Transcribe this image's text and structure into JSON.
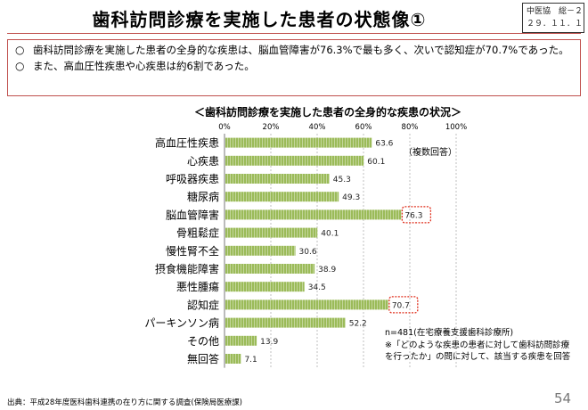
{
  "page": {
    "title": "歯科訪問診療を実施した患者の状態像①",
    "doc_ref_line1": "中医協　総－２",
    "doc_ref_line2": "２９．１１．１０",
    "summary": [
      {
        "mark": "○",
        "text": "歯科訪問診療を実施した患者の全身的な疾患は、脳血管障害が76.3%で最も多く、次いで認知症が70.7%であった。"
      },
      {
        "mark": "○",
        "text": "また、高血圧性疾患や心疾患は約6割であった。"
      }
    ],
    "legend_note": "（複数回答）",
    "n_note": "n=481(在宅療養支援歯科診療所)",
    "foot_note": "※「どのような疾患の患者に対して歯科訪問診療を行ったか」の問に対して、該当する疾患を回答",
    "source": "出典：平成28年度医科歯科連携の在り方に関する調査(保険局医療課)",
    "page_number": "54"
  },
  "chart_data": {
    "type": "bar",
    "orientation": "horizontal",
    "title": "＜歯科訪問診療を実施した患者の全身的な疾患の状況＞",
    "categories": [
      "高血圧性疾患",
      "心疾患",
      "呼吸器疾患",
      "糖尿病",
      "脳血管障害",
      "骨粗鬆症",
      "慢性腎不全",
      "摂食機能障害",
      "悪性腫瘍",
      "認知症",
      "パーキンソン病",
      "その他",
      "無回答"
    ],
    "values": [
      63.6,
      60.1,
      45.3,
      49.3,
      76.3,
      40.1,
      30.6,
      38.9,
      34.5,
      70.7,
      52.2,
      13.9,
      7.1
    ],
    "value_labels": [
      "63.6",
      "60.1",
      "45.3",
      "49.3",
      "76.3",
      "40.1",
      "30.6",
      "38.9",
      "34.5",
      "70.7",
      "52.2",
      "13.9",
      "7.1"
    ],
    "highlighted": [
      "脳血管障害",
      "認知症"
    ],
    "xlim": [
      0,
      100
    ],
    "xticks": [
      "0%",
      "20%",
      "40%",
      "60%",
      "80%",
      "100%"
    ],
    "grid": true,
    "colors": {
      "bar": "#9bbb59",
      "bar_stripe": "#c3d69b",
      "highlight": "#e0301e",
      "grid": "#b0b0b0"
    }
  }
}
